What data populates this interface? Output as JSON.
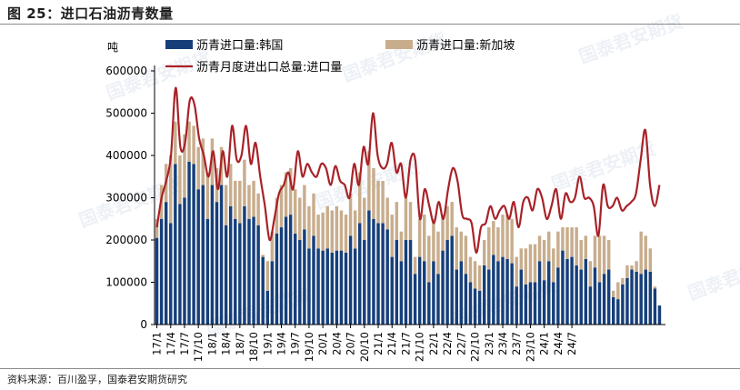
{
  "figure_title": "图 25：进口石油沥青数量",
  "source_note": "资料来源：百川盈孚，国泰君安期货研究",
  "watermark": "国泰君安期货 GUOTAI JUNAN FUTURES",
  "colors": {
    "korea": "#163F7A",
    "singapore": "#C8AD8D",
    "total_line": "#A82228",
    "axis": "#000000"
  },
  "chart_data": {
    "type": "bar",
    "stacked": true,
    "unit_label": "吨",
    "ylim": [
      0,
      600000
    ],
    "y_ticks": [
      "600000",
      "500000",
      "400000",
      "300000",
      "200000",
      "100000",
      "0"
    ],
    "x_tick_labels": [
      "17/1",
      "17/4",
      "17/7",
      "17/10",
      "18/1",
      "18/4",
      "18/7",
      "18/10",
      "19/1",
      "19/4",
      "19/7",
      "19/10",
      "20/1",
      "20/4",
      "20/7",
      "20/10",
      "21/1",
      "21/4",
      "21/7",
      "21/10",
      "22/1",
      "22/4",
      "22/7",
      "22/10",
      "23/1",
      "23/4",
      "23/7",
      "23/10",
      "24/1",
      "24/4",
      "24/7"
    ],
    "legend": [
      "沥青进口量:韩国",
      "沥青进口量:新加坡",
      "沥青月度进出口总量:进口量"
    ],
    "legend_placement": "top",
    "grid": false,
    "series": [
      {
        "name": "沥青进口量:韩国",
        "kind": "bar",
        "values": [
          205000,
          250000,
          290000,
          240000,
          380000,
          285000,
          300000,
          385000,
          380000,
          320000,
          330000,
          250000,
          330000,
          290000,
          330000,
          235000,
          280000,
          250000,
          240000,
          280000,
          250000,
          255000,
          235000,
          160000,
          80000,
          150000,
          215000,
          230000,
          255000,
          260000,
          215000,
          200000,
          225000,
          180000,
          210000,
          180000,
          175000,
          180000,
          170000,
          175000,
          175000,
          170000,
          210000,
          180000,
          240000,
          200000,
          270000,
          250000,
          240000,
          240000,
          225000,
          160000,
          200000,
          150000,
          200000,
          200000,
          120000,
          160000,
          150000,
          100000,
          150000,
          120000,
          175000,
          200000,
          210000,
          130000,
          150000,
          120000,
          100000,
          85000,
          80000,
          140000,
          130000,
          165000,
          150000,
          160000,
          155000,
          145000,
          90000,
          130000,
          95000,
          100000,
          100000,
          150000,
          105000,
          150000,
          100000,
          135000,
          175000,
          155000,
          160000,
          140000,
          130000,
          155000,
          90000,
          135000,
          100000,
          120000,
          130000,
          65000,
          60000,
          95000,
          110000,
          130000,
          125000,
          120000,
          130000,
          125000,
          85000,
          45000
        ],
        "total": [
          250000,
          330000,
          380000,
          400000,
          480000,
          400000,
          450000,
          480000,
          470000,
          420000,
          440000,
          360000,
          440000,
          370000,
          420000,
          330000,
          380000,
          340000,
          340000,
          390000,
          330000,
          340000,
          310000,
          165000,
          150000,
          220000,
          300000,
          330000,
          360000,
          370000,
          320000,
          300000,
          330000,
          280000,
          310000,
          260000,
          265000,
          280000,
          270000,
          280000,
          270000,
          260000,
          310000,
          270000,
          360000,
          300000,
          410000,
          370000,
          340000,
          340000,
          300000,
          260000,
          290000,
          220000,
          300000,
          290000,
          160000,
          250000,
          260000,
          210000,
          250000,
          220000,
          260000,
          280000,
          290000,
          230000,
          220000,
          210000,
          160000,
          150000,
          140000,
          200000,
          230000,
          245000,
          230000,
          260000,
          260000,
          250000,
          160000,
          180000,
          180000,
          190000,
          190000,
          210000,
          200000,
          220000,
          180000,
          220000,
          230000,
          230000,
          230000,
          230000,
          200000,
          210000,
          150000,
          210000,
          210000,
          210000,
          200000,
          80000,
          100000,
          110000,
          140000,
          140000,
          150000,
          220000,
          210000,
          180000,
          90000,
          45000
        ]
      },
      {
        "name": "沥青月度进出口总量:进口量",
        "kind": "line",
        "values": [
          230000,
          300000,
          340000,
          400000,
          560000,
          420000,
          430000,
          530000,
          520000,
          440000,
          400000,
          350000,
          410000,
          320000,
          410000,
          350000,
          470000,
          390000,
          400000,
          470000,
          380000,
          430000,
          350000,
          280000,
          200000,
          250000,
          310000,
          330000,
          360000,
          320000,
          410000,
          350000,
          380000,
          360000,
          350000,
          380000,
          370000,
          330000,
          375000,
          340000,
          330000,
          300000,
          380000,
          330000,
          420000,
          380000,
          500000,
          400000,
          370000,
          380000,
          430000,
          360000,
          380000,
          300000,
          390000,
          390000,
          250000,
          320000,
          280000,
          240000,
          290000,
          250000,
          320000,
          370000,
          340000,
          260000,
          250000,
          240000,
          170000,
          230000,
          240000,
          280000,
          250000,
          270000,
          280000,
          250000,
          290000,
          230000,
          290000,
          300000,
          270000,
          320000,
          300000,
          250000,
          280000,
          320000,
          250000,
          310000,
          290000,
          300000,
          350000,
          300000,
          300000,
          280000,
          210000,
          330000,
          280000,
          280000,
          300000,
          270000,
          280000,
          290000,
          310000,
          390000,
          460000,
          330000,
          280000,
          330000
        ]
      }
    ]
  }
}
